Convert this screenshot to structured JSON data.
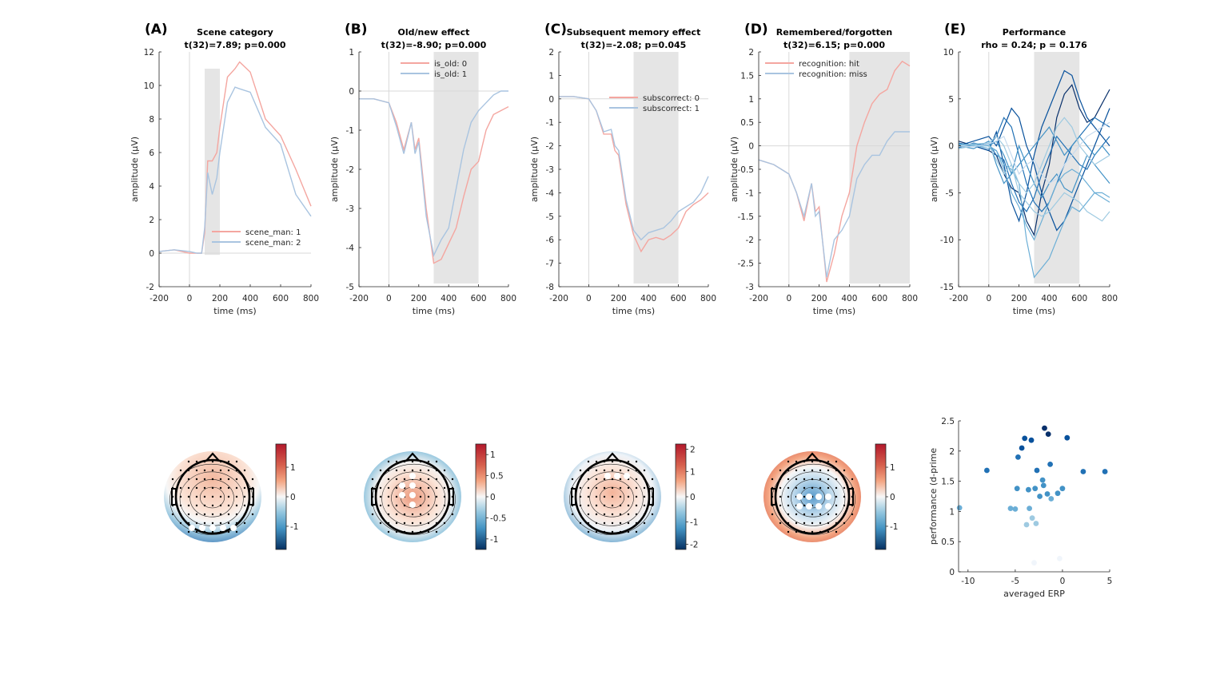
{
  "panels": [
    {
      "letter": "(A)",
      "title": "Scene category",
      "stat": "t(32)=7.89; p=0.000",
      "xlabel": "time (ms)",
      "ylabel": "amplitude (µV)",
      "xticks": [
        "-200",
        "0",
        "200",
        "400",
        "600",
        "800"
      ],
      "yticks": [
        "-2",
        "0",
        "2",
        "4",
        "6",
        "8",
        "10",
        "12"
      ],
      "legend": [
        "scene_man: 1",
        "scene_man: 2"
      ],
      "topo_ticks": [
        "1",
        "0",
        "-1"
      ]
    },
    {
      "letter": "(B)",
      "title": "Old/new effect",
      "stat": "t(32)=-8.90; p=0.000",
      "xlabel": "time (ms)",
      "ylabel": "amplitude (µV)",
      "xticks": [
        "-200",
        "0",
        "200",
        "400",
        "600",
        "800"
      ],
      "yticks": [
        "-5",
        "-4",
        "-3",
        "-2",
        "-1",
        "0",
        "1"
      ],
      "legend": [
        "is_old: 0",
        "is_old: 1"
      ],
      "topo_ticks": [
        "1",
        "0.5",
        "0",
        "-0.5",
        "-1"
      ]
    },
    {
      "letter": "(C)",
      "title": "Subsequent memory effect",
      "stat": "t(32)=-2.08; p=0.045",
      "xlabel": "time (ms)",
      "ylabel": "amplitude (µV)",
      "xticks": [
        "-200",
        "0",
        "200",
        "400",
        "600",
        "800"
      ],
      "yticks": [
        "-8",
        "-7",
        "-6",
        "-5",
        "-4",
        "-3",
        "-2",
        "-1",
        "0",
        "1",
        "2"
      ],
      "legend": [
        "subscorrect: 0",
        "subscorrect: 1"
      ],
      "topo_ticks": [
        "2",
        "1",
        "0",
        "-1",
        "-2"
      ]
    },
    {
      "letter": "(D)",
      "title": "Remembered/forgotten",
      "stat": "t(32)=6.15; p=0.000",
      "xlabel": "time (ms)",
      "ylabel": "amplitude (µV)",
      "xticks": [
        "-200",
        "0",
        "200",
        "400",
        "600",
        "800"
      ],
      "yticks": [
        "-3",
        "-2.5",
        "-2",
        "-1.5",
        "-1",
        "-0.5",
        "0",
        "0.5",
        "1",
        "1.5",
        "2"
      ],
      "legend": [
        "recognition: hit",
        "recognition: miss"
      ],
      "topo_ticks": [
        "1",
        "0",
        "-1"
      ]
    },
    {
      "letter": "(E)",
      "title": "Performance",
      "stat": "rho = 0.24; p = 0.176",
      "xlabel": "time (ms)",
      "ylabel": "amplitude (µV)",
      "xticks": [
        "-200",
        "0",
        "200",
        "400",
        "600",
        "800"
      ],
      "yticks": [
        "-15",
        "-10",
        "-5",
        "0",
        "5",
        "10"
      ]
    }
  ],
  "scatter_axes": {
    "xlabel": "averaged ERP",
    "ylabel": "performance (d-prime",
    "xticks": [
      "-10",
      "-5",
      "0",
      "5"
    ],
    "yticks": [
      "0",
      "0.5",
      "1",
      "1.5",
      "2",
      "2.5"
    ]
  },
  "colors": {
    "condition_1": "#f4a6a0",
    "condition_2": "#a9c4e0",
    "highlight_window": "#e5e5e5",
    "subject_dark": "#08306b",
    "subject_light": "#c6dbef"
  },
  "chart_data": [
    {
      "type": "line",
      "panel": "A",
      "title": "Scene category",
      "xlabel": "time (ms)",
      "ylabel": "amplitude (µV)",
      "xlim": [
        -200,
        800
      ],
      "ylim": [
        -2,
        12
      ],
      "highlight": [
        100,
        200
      ],
      "x": [
        -200,
        -100,
        0,
        50,
        80,
        100,
        120,
        150,
        180,
        200,
        250,
        300,
        330,
        400,
        500,
        600,
        700,
        800
      ],
      "series": [
        {
          "name": "scene_man: 1",
          "values": [
            0.1,
            0.2,
            0.0,
            0.0,
            0.0,
            1.2,
            5.5,
            5.5,
            6.0,
            7.5,
            10.5,
            11.0,
            11.4,
            10.8,
            8.0,
            7.0,
            5.0,
            2.8
          ]
        },
        {
          "name": "scene_man: 2",
          "values": [
            0.1,
            0.2,
            0.1,
            0.0,
            0.0,
            1.5,
            4.8,
            3.5,
            4.5,
            6.0,
            9.0,
            9.9,
            9.8,
            9.6,
            7.5,
            6.5,
            3.5,
            2.2
          ]
        }
      ]
    },
    {
      "type": "line",
      "panel": "B",
      "title": "Old/new effect",
      "xlabel": "time (ms)",
      "ylabel": "amplitude (µV)",
      "xlim": [
        -200,
        800
      ],
      "ylim": [
        -5,
        1
      ],
      "highlight": [
        300,
        600
      ],
      "x": [
        -200,
        -100,
        0,
        50,
        100,
        150,
        175,
        200,
        250,
        300,
        350,
        400,
        450,
        500,
        550,
        600,
        650,
        700,
        750,
        800
      ],
      "series": [
        {
          "name": "is_old: 0",
          "values": [
            -0.2,
            -0.2,
            -0.3,
            -0.8,
            -1.5,
            -0.8,
            -1.5,
            -1.2,
            -3.0,
            -4.4,
            -4.3,
            -3.9,
            -3.5,
            -2.7,
            -2.0,
            -1.8,
            -1.0,
            -0.6,
            -0.5,
            -0.4
          ]
        },
        {
          "name": "is_old: 1",
          "values": [
            -0.2,
            -0.2,
            -0.3,
            -0.9,
            -1.6,
            -0.8,
            -1.6,
            -1.3,
            -3.2,
            -4.2,
            -3.8,
            -3.5,
            -2.5,
            -1.5,
            -0.8,
            -0.5,
            -0.3,
            -0.1,
            0.0,
            0.0
          ]
        }
      ]
    },
    {
      "type": "line",
      "panel": "C",
      "title": "Subsequent memory effect",
      "xlabel": "time (ms)",
      "ylabel": "amplitude (µV)",
      "xlim": [
        -200,
        800
      ],
      "ylim": [
        -8,
        2
      ],
      "highlight": [
        300,
        600
      ],
      "x": [
        -200,
        -100,
        0,
        50,
        100,
        150,
        175,
        200,
        250,
        300,
        350,
        400,
        450,
        500,
        550,
        600,
        650,
        700,
        750,
        800
      ],
      "series": [
        {
          "name": "subscorrect: 0",
          "values": [
            0.1,
            0.1,
            0.0,
            -0.5,
            -1.5,
            -1.5,
            -2.2,
            -2.4,
            -4.5,
            -5.8,
            -6.5,
            -6.0,
            -5.9,
            -6.0,
            -5.8,
            -5.5,
            -4.8,
            -4.5,
            -4.3,
            -4.0
          ]
        },
        {
          "name": "subscorrect: 1",
          "values": [
            0.1,
            0.1,
            0.0,
            -0.5,
            -1.4,
            -1.3,
            -2.0,
            -2.2,
            -4.3,
            -5.6,
            -6.0,
            -5.7,
            -5.6,
            -5.5,
            -5.2,
            -4.8,
            -4.6,
            -4.4,
            -4.0,
            -3.3
          ]
        }
      ]
    },
    {
      "type": "line",
      "panel": "D",
      "title": "Remembered/forgotten",
      "xlabel": "time (ms)",
      "ylabel": "amplitude (µV)",
      "xlim": [
        -200,
        800
      ],
      "ylim": [
        -3,
        2
      ],
      "highlight": [
        400,
        800
      ],
      "x": [
        -200,
        -100,
        0,
        50,
        100,
        150,
        175,
        200,
        250,
        300,
        350,
        400,
        450,
        500,
        550,
        600,
        650,
        700,
        750,
        800
      ],
      "series": [
        {
          "name": "recognition: hit",
          "values": [
            -0.3,
            -0.4,
            -0.6,
            -1.0,
            -1.6,
            -0.8,
            -1.4,
            -1.3,
            -2.9,
            -2.3,
            -1.5,
            -1.0,
            0.0,
            0.5,
            0.9,
            1.1,
            1.2,
            1.6,
            1.8,
            1.7
          ]
        },
        {
          "name": "recognition: miss",
          "values": [
            -0.3,
            -0.4,
            -0.6,
            -1.0,
            -1.5,
            -0.8,
            -1.5,
            -1.4,
            -2.8,
            -2.0,
            -1.8,
            -1.5,
            -0.7,
            -0.4,
            -0.2,
            -0.2,
            0.1,
            0.3,
            0.3,
            0.3
          ]
        }
      ]
    },
    {
      "type": "line",
      "panel": "E",
      "title": "Performance",
      "xlabel": "time (ms)",
      "ylabel": "amplitude (µV)",
      "xlim": [
        -200,
        800
      ],
      "ylim": [
        -15,
        10
      ],
      "highlight": [
        300,
        600
      ],
      "x": [
        -200,
        -100,
        0,
        50,
        100,
        150,
        200,
        250,
        300,
        350,
        400,
        450,
        500,
        550,
        600,
        650,
        700,
        750,
        800
      ],
      "series": [
        {
          "values": [
            0.5,
            0.0,
            -0.5,
            -1.0,
            -3.0,
            -4.5,
            -5.0,
            -8.0,
            -9.5,
            -5.0,
            -2.0,
            3.0,
            5.5,
            6.5,
            4.0,
            2.5,
            3.0,
            4.5,
            6.0
          ]
        },
        {
          "values": [
            0.0,
            0.5,
            1.0,
            0.0,
            2.0,
            4.0,
            3.0,
            0.0,
            -2.0,
            -5.0,
            -7.0,
            -9.0,
            -8.0,
            -6.0,
            -4.0,
            -2.0,
            0.0,
            2.0,
            4.0
          ]
        },
        {
          "values": [
            0.0,
            0.0,
            -0.5,
            1.5,
            -2.0,
            -6.0,
            -8.0,
            -5.0,
            -1.0,
            2.0,
            4.0,
            6.0,
            8.0,
            7.5,
            5.0,
            3.0,
            2.0,
            1.0,
            0.0
          ]
        },
        {
          "values": [
            0.3,
            0.0,
            0.2,
            -1.0,
            -1.5,
            -4.0,
            -6.0,
            -7.0,
            -5.5,
            -3.0,
            -1.0,
            1.0,
            0.0,
            -1.0,
            -2.0,
            -2.5,
            -1.0,
            0.0,
            1.0
          ]
        },
        {
          "values": [
            -0.2,
            0.3,
            0.0,
            1.0,
            3.0,
            2.0,
            -1.0,
            -4.0,
            -6.0,
            -7.0,
            -6.0,
            -4.0,
            -2.0,
            0.0,
            1.0,
            2.0,
            3.0,
            2.5,
            2.0
          ]
        },
        {
          "values": [
            0.0,
            -0.3,
            0.5,
            -2.0,
            -4.0,
            -3.0,
            0.0,
            -2.0,
            -4.0,
            -5.5,
            -4.0,
            -3.0,
            -4.5,
            -5.0,
            -3.0,
            -1.0,
            -2.0,
            -3.0,
            -4.0
          ]
        },
        {
          "values": [
            0.1,
            0.2,
            0.0,
            0.5,
            -1.0,
            -3.0,
            -2.0,
            -1.0,
            0.0,
            1.0,
            2.0,
            0.5,
            -1.0,
            0.0,
            1.0,
            0.0,
            -1.0,
            0.0,
            -1.0
          ]
        },
        {
          "values": [
            0.0,
            0.1,
            -0.3,
            -0.5,
            -2.5,
            -5.0,
            -6.5,
            -8.5,
            -10.0,
            -8.0,
            -6.0,
            -4.0,
            -3.0,
            -2.5,
            -3.0,
            -4.0,
            -5.0,
            -5.5,
            -6.0
          ]
        },
        {
          "values": [
            0.2,
            0.0,
            0.0,
            -0.5,
            -2.0,
            -2.5,
            -4.0,
            -10.0,
            -14.0,
            -13.0,
            -12.0,
            -10.0,
            -8.0,
            -6.5,
            -7.0,
            -6.0,
            -5.0,
            -5.0,
            -5.5
          ]
        },
        {
          "values": [
            0.0,
            0.2,
            0.3,
            1.0,
            0.0,
            -2.0,
            -4.0,
            -5.0,
            -4.0,
            -2.0,
            0.0,
            2.0,
            3.0,
            2.0,
            0.0,
            -1.0,
            -2.0,
            -1.5,
            -1.0
          ]
        },
        {
          "values": [
            -0.3,
            0.0,
            0.1,
            -1.5,
            -3.0,
            -2.0,
            -5.0,
            -6.0,
            -7.0,
            -7.5,
            -7.0,
            -6.0,
            -5.0,
            -5.5,
            -6.0,
            -7.0,
            -7.5,
            -8.0,
            -7.0
          ]
        },
        {
          "values": [
            0.0,
            -0.1,
            0.2,
            0.5,
            1.0,
            -1.0,
            -3.0,
            -2.0,
            -1.5,
            -3.0,
            -4.0,
            -3.5,
            -2.0,
            -1.0,
            0.0,
            1.0,
            1.5,
            2.0,
            2.5
          ]
        }
      ]
    },
    {
      "type": "scatter",
      "panel": "E",
      "xlabel": "averaged ERP",
      "ylabel": "performance (d-prime",
      "xlim": [
        -11,
        5
      ],
      "ylim": [
        0,
        2.5
      ],
      "points": [
        {
          "x": -10.9,
          "y": 1.06
        },
        {
          "x": -8.0,
          "y": 1.68
        },
        {
          "x": -5.5,
          "y": 1.05
        },
        {
          "x": -5.0,
          "y": 1.04
        },
        {
          "x": -4.8,
          "y": 1.38
        },
        {
          "x": -4.7,
          "y": 1.9
        },
        {
          "x": -4.3,
          "y": 2.05
        },
        {
          "x": -4.0,
          "y": 2.21
        },
        {
          "x": -3.8,
          "y": 0.78
        },
        {
          "x": -3.6,
          "y": 1.36
        },
        {
          "x": -3.5,
          "y": 1.05
        },
        {
          "x": -3.3,
          "y": 2.18
        },
        {
          "x": -3.2,
          "y": 0.89
        },
        {
          "x": -2.9,
          "y": 1.38
        },
        {
          "x": -2.8,
          "y": 0.8
        },
        {
          "x": -2.7,
          "y": 1.68
        },
        {
          "x": -2.4,
          "y": 1.25
        },
        {
          "x": -2.1,
          "y": 1.52
        },
        {
          "x": -1.9,
          "y": 2.38
        },
        {
          "x": -1.6,
          "y": 1.29
        },
        {
          "x": -1.5,
          "y": 2.28
        },
        {
          "x": -1.3,
          "y": 1.78
        },
        {
          "x": -1.2,
          "y": 1.21
        },
        {
          "x": -0.3,
          "y": 0.22
        },
        {
          "x": -3.0,
          "y": 0.15
        },
        {
          "x": 0.0,
          "y": 1.38
        },
        {
          "x": 0.5,
          "y": 2.22
        },
        {
          "x": 2.2,
          "y": 1.66
        },
        {
          "x": 4.5,
          "y": 1.66
        },
        {
          "x": -0.5,
          "y": 1.3
        },
        {
          "x": -2.0,
          "y": 1.43
        }
      ]
    }
  ]
}
